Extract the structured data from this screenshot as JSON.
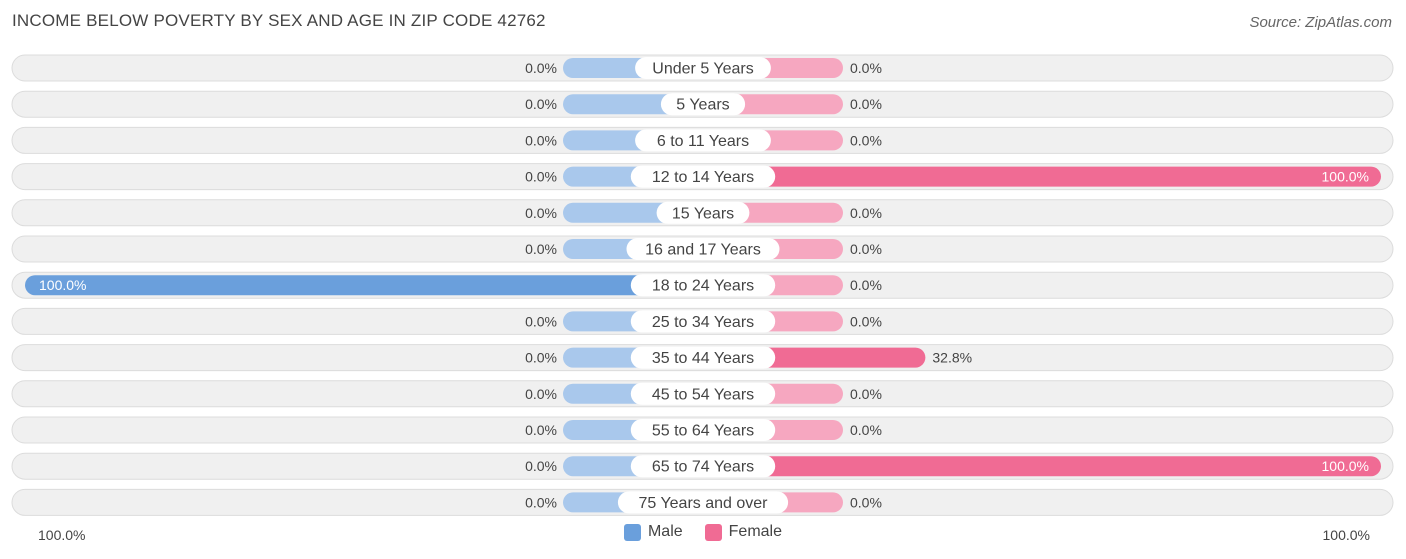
{
  "title": "INCOME BELOW POVERTY BY SEX AND AGE IN ZIP CODE 42762",
  "source": "Source: ZipAtlas.com",
  "colors": {
    "male_strong": "#6a9fdc",
    "male_light": "#a9c8ec",
    "female_strong": "#f06b94",
    "female_light": "#f6a7c0",
    "row_bg": "#f0f0f0",
    "row_border": "#dcdcdc"
  },
  "chart_data": {
    "type": "bar",
    "orientation": "horizontal-diverging",
    "categories": [
      "Under 5 Years",
      "5 Years",
      "6 to 11 Years",
      "12 to 14 Years",
      "15 Years",
      "16 and 17 Years",
      "18 to 24 Years",
      "25 to 34 Years",
      "35 to 44 Years",
      "45 to 54 Years",
      "55 to 64 Years",
      "65 to 74 Years",
      "75 Years and over"
    ],
    "series": [
      {
        "name": "Male",
        "values": [
          0,
          0,
          0,
          0,
          0,
          0,
          100,
          0,
          0,
          0,
          0,
          0,
          0
        ]
      },
      {
        "name": "Female",
        "values": [
          0,
          0,
          0,
          100,
          0,
          0,
          0,
          0,
          32.8,
          0,
          0,
          100,
          0
        ]
      }
    ],
    "value_labels": {
      "Male": [
        "0.0%",
        "0.0%",
        "0.0%",
        "0.0%",
        "0.0%",
        "0.0%",
        "100.0%",
        "0.0%",
        "0.0%",
        "0.0%",
        "0.0%",
        "0.0%",
        "0.0%"
      ],
      "Female": [
        "0.0%",
        "0.0%",
        "0.0%",
        "100.0%",
        "0.0%",
        "0.0%",
        "0.0%",
        "0.0%",
        "32.8%",
        "0.0%",
        "0.0%",
        "100.0%",
        "0.0%"
      ]
    },
    "xlim": [
      0,
      100
    ],
    "axis_left_label": "100.0%",
    "axis_right_label": "100.0%",
    "legend": [
      "Male",
      "Female"
    ],
    "legend_position": "bottom-center"
  }
}
